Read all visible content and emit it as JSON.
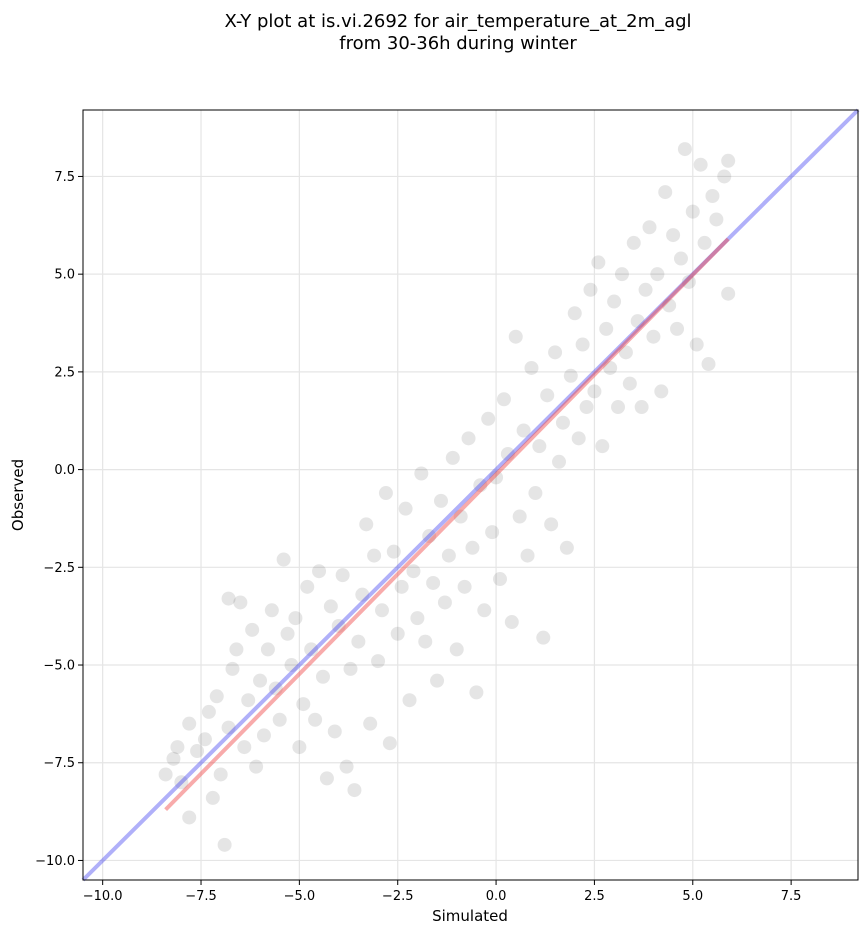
{
  "chart_data": {
    "type": "scatter",
    "title": "X-Y plot at is.vi.2692 for air_temperature_at_2m_agl",
    "subtitle": "from 30-36h during winter",
    "xlabel": "Simulated",
    "ylabel": "Observed",
    "xlim": [
      -10.5,
      9.2
    ],
    "ylim": [
      -10.5,
      9.2
    ],
    "xticks": [
      -10.0,
      -7.5,
      -5.0,
      -2.5,
      0.0,
      2.5,
      5.0,
      7.5
    ],
    "yticks": [
      -10.0,
      -7.5,
      -5.0,
      -2.5,
      0.0,
      2.5,
      5.0,
      7.5
    ],
    "xtick_labels": [
      "−10.0",
      "−7.5",
      "−5.0",
      "−2.5",
      "0.0",
      "2.5",
      "5.0",
      "7.5"
    ],
    "ytick_labels": [
      "−10.0",
      "−7.5",
      "−5.0",
      "−2.5",
      "0.0",
      "2.5",
      "5.0",
      "7.5"
    ],
    "grid": true,
    "point_color": "#000000",
    "point_opacity": 0.1,
    "points": [
      [
        -8.4,
        -7.8
      ],
      [
        -8.2,
        -7.4
      ],
      [
        -8.1,
        -7.1
      ],
      [
        -8.0,
        -8.0
      ],
      [
        -7.8,
        -6.5
      ],
      [
        -7.8,
        -8.9
      ],
      [
        -7.6,
        -7.2
      ],
      [
        -7.4,
        -6.9
      ],
      [
        -7.3,
        -6.2
      ],
      [
        -7.2,
        -8.4
      ],
      [
        -7.1,
        -5.8
      ],
      [
        -7.0,
        -7.8
      ],
      [
        -6.9,
        -9.6
      ],
      [
        -6.8,
        -6.6
      ],
      [
        -6.8,
        -3.3
      ],
      [
        -6.7,
        -5.1
      ],
      [
        -6.6,
        -4.6
      ],
      [
        -6.5,
        -3.4
      ],
      [
        -6.4,
        -7.1
      ],
      [
        -6.3,
        -5.9
      ],
      [
        -6.2,
        -4.1
      ],
      [
        -6.1,
        -7.6
      ],
      [
        -6.0,
        -5.4
      ],
      [
        -5.9,
        -6.8
      ],
      [
        -5.8,
        -4.6
      ],
      [
        -5.7,
        -3.6
      ],
      [
        -5.6,
        -5.6
      ],
      [
        -5.5,
        -6.4
      ],
      [
        -5.4,
        -2.3
      ],
      [
        -5.3,
        -4.2
      ],
      [
        -5.2,
        -5.0
      ],
      [
        -5.1,
        -3.8
      ],
      [
        -5.0,
        -7.1
      ],
      [
        -4.9,
        -6.0
      ],
      [
        -4.8,
        -3.0
      ],
      [
        -4.7,
        -4.6
      ],
      [
        -4.6,
        -6.4
      ],
      [
        -4.5,
        -2.6
      ],
      [
        -4.4,
        -5.3
      ],
      [
        -4.3,
        -7.9
      ],
      [
        -4.2,
        -3.5
      ],
      [
        -4.1,
        -6.7
      ],
      [
        -4.0,
        -4.0
      ],
      [
        -3.9,
        -2.7
      ],
      [
        -3.8,
        -7.6
      ],
      [
        -3.7,
        -5.1
      ],
      [
        -3.6,
        -8.2
      ],
      [
        -3.5,
        -4.4
      ],
      [
        -3.4,
        -3.2
      ],
      [
        -3.3,
        -1.4
      ],
      [
        -3.2,
        -6.5
      ],
      [
        -3.1,
        -2.2
      ],
      [
        -3.0,
        -4.9
      ],
      [
        -2.9,
        -3.6
      ],
      [
        -2.8,
        -0.6
      ],
      [
        -2.7,
        -7.0
      ],
      [
        -2.6,
        -2.1
      ],
      [
        -2.5,
        -4.2
      ],
      [
        -2.4,
        -3.0
      ],
      [
        -2.3,
        -1.0
      ],
      [
        -2.2,
        -5.9
      ],
      [
        -2.1,
        -2.6
      ],
      [
        -2.0,
        -3.8
      ],
      [
        -1.9,
        -0.1
      ],
      [
        -1.8,
        -4.4
      ],
      [
        -1.7,
        -1.7
      ],
      [
        -1.6,
        -2.9
      ],
      [
        -1.5,
        -5.4
      ],
      [
        -1.4,
        -0.8
      ],
      [
        -1.3,
        -3.4
      ],
      [
        -1.2,
        -2.2
      ],
      [
        -1.1,
        0.3
      ],
      [
        -1.0,
        -4.6
      ],
      [
        -0.9,
        -1.2
      ],
      [
        -0.8,
        -3.0
      ],
      [
        -0.7,
        0.8
      ],
      [
        -0.6,
        -2.0
      ],
      [
        -0.5,
        -5.7
      ],
      [
        -0.4,
        -0.4
      ],
      [
        -0.3,
        -3.6
      ],
      [
        -0.2,
        1.3
      ],
      [
        -0.1,
        -1.6
      ],
      [
        0.0,
        -0.2
      ],
      [
        0.1,
        -2.8
      ],
      [
        0.2,
        1.8
      ],
      [
        0.3,
        0.4
      ],
      [
        0.4,
        -3.9
      ],
      [
        0.5,
        3.4
      ],
      [
        0.6,
        -1.2
      ],
      [
        0.7,
        1.0
      ],
      [
        0.8,
        -2.2
      ],
      [
        0.9,
        2.6
      ],
      [
        1.0,
        -0.6
      ],
      [
        1.1,
        0.6
      ],
      [
        1.2,
        -4.3
      ],
      [
        1.3,
        1.9
      ],
      [
        1.4,
        -1.4
      ],
      [
        1.5,
        3.0
      ],
      [
        1.6,
        0.2
      ],
      [
        1.7,
        1.2
      ],
      [
        1.8,
        -2.0
      ],
      [
        1.9,
        2.4
      ],
      [
        2.0,
        4.0
      ],
      [
        2.1,
        0.8
      ],
      [
        2.2,
        3.2
      ],
      [
        2.3,
        1.6
      ],
      [
        2.4,
        4.6
      ],
      [
        2.5,
        2.0
      ],
      [
        2.6,
        5.3
      ],
      [
        2.7,
        0.6
      ],
      [
        2.8,
        3.6
      ],
      [
        2.9,
        2.6
      ],
      [
        3.0,
        4.3
      ],
      [
        3.1,
        1.6
      ],
      [
        3.2,
        5.0
      ],
      [
        3.3,
        3.0
      ],
      [
        3.4,
        2.2
      ],
      [
        3.5,
        5.8
      ],
      [
        3.6,
        3.8
      ],
      [
        3.7,
        1.6
      ],
      [
        3.8,
        4.6
      ],
      [
        3.9,
        6.2
      ],
      [
        4.0,
        3.4
      ],
      [
        4.1,
        5.0
      ],
      [
        4.2,
        2.0
      ],
      [
        4.3,
        7.1
      ],
      [
        4.4,
        4.2
      ],
      [
        4.5,
        6.0
      ],
      [
        4.6,
        3.6
      ],
      [
        4.7,
        5.4
      ],
      [
        4.8,
        8.2
      ],
      [
        4.9,
        4.8
      ],
      [
        5.0,
        6.6
      ],
      [
        5.1,
        3.2
      ],
      [
        5.2,
        7.8
      ],
      [
        5.3,
        5.8
      ],
      [
        5.4,
        2.7
      ],
      [
        5.5,
        7.0
      ],
      [
        5.6,
        6.4
      ],
      [
        5.8,
        7.5
      ],
      [
        5.9,
        4.5
      ],
      [
        5.9,
        7.9
      ]
    ],
    "fit_line": {
      "color": "#ef4444",
      "opacity": 0.45,
      "from": [
        -8.4,
        -8.7
      ],
      "to": [
        5.9,
        5.9
      ]
    },
    "identity_line": {
      "color": "#3a3af0",
      "opacity": 0.4,
      "from": [
        -10.5,
        -10.5
      ],
      "to": [
        9.2,
        9.2
      ]
    }
  }
}
